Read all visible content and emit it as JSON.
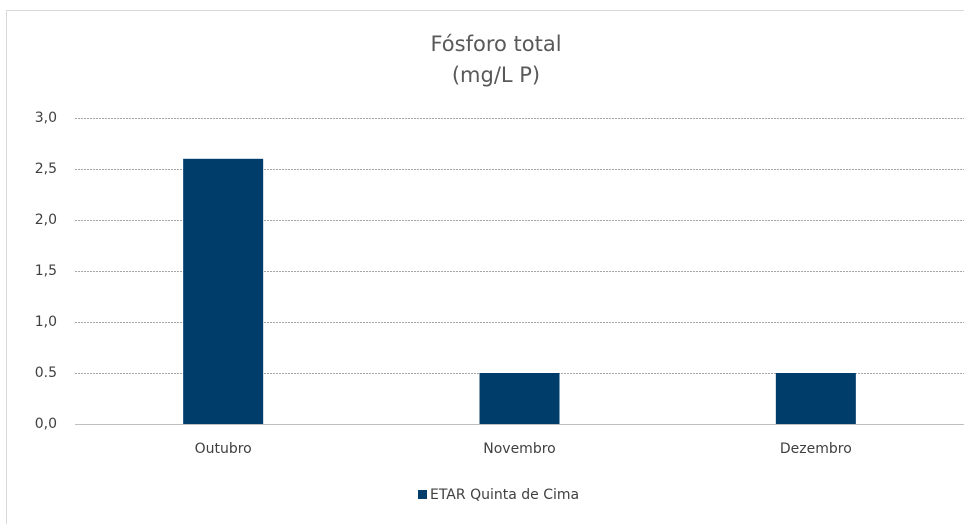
{
  "chart_data": {
    "type": "bar",
    "title": "Fósforo total",
    "subtitle": "(mg/L P)",
    "categories": [
      "Outubro",
      "Novembro",
      "Dezembro"
    ],
    "series": [
      {
        "name": "ETAR Quinta de Cima",
        "color": "#003d6b",
        "values": [
          2.6,
          0.5,
          0.5
        ]
      }
    ],
    "ylim": [
      0,
      3
    ],
    "yticks": [
      {
        "value": 0,
        "label": "0,0"
      },
      0.5,
      {
        "value": 1,
        "label": "1,0"
      },
      {
        "value": 1.5,
        "label": "1,5"
      },
      {
        "value": 2,
        "label": "2,0"
      },
      {
        "value": 2.5,
        "label": "2,5"
      },
      {
        "value": 3,
        "label": "3,0"
      }
    ],
    "grid": true,
    "legend": "bottom"
  }
}
